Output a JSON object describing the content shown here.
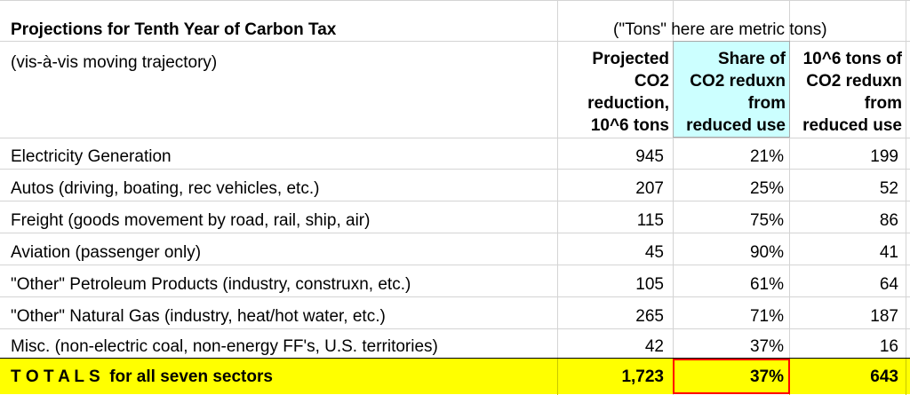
{
  "title": "Projections for Tenth Year of Carbon Tax",
  "subtitle": "(vis-à-vis moving trajectory)",
  "note": "(\"Tons\" here are metric tons)",
  "columns": {
    "col1": [
      "Projected",
      "CO2",
      "reduction,",
      "10^6 tons"
    ],
    "col2": [
      "Share of",
      "CO2 reduxn",
      "from",
      "reduced use"
    ],
    "col3": [
      "10^6 tons of",
      "CO2 reduxn",
      "from",
      "reduced use"
    ]
  },
  "rows": [
    {
      "label": "Electricity Generation",
      "projected": "945",
      "share": "21%",
      "tons": "199"
    },
    {
      "label": "Autos (driving, boating, rec vehicles, etc.)",
      "projected": "207",
      "share": "25%",
      "tons": "52"
    },
    {
      "label": "Freight (goods movement by road, rail, ship, air)",
      "projected": "115",
      "share": "75%",
      "tons": "86"
    },
    {
      "label": "Aviation (passenger only)",
      "projected": "45",
      "share": "90%",
      "tons": "41"
    },
    {
      "label": "\"Other\" Petroleum Products (industry, construxn, etc.)",
      "projected": "105",
      "share": "61%",
      "tons": "64"
    },
    {
      "label": "\"Other\" Natural Gas (industry, heat/hot water, etc.)",
      "projected": "265",
      "share": "71%",
      "tons": "187"
    },
    {
      "label": "Misc. (non-electric coal, non-energy FF's, U.S. territories)",
      "projected": "42",
      "share": "37%",
      "tons": "16"
    }
  ],
  "totals": {
    "label": "T O T A L S  for all seven sectors",
    "projected": "1,723",
    "share": "37%",
    "tons": "643"
  },
  "colors": {
    "highlight_cyan": "#ccffff",
    "totals_yellow": "#ffff00",
    "total_share_border": "#ff0000",
    "gridline": "#d4d4d4"
  }
}
